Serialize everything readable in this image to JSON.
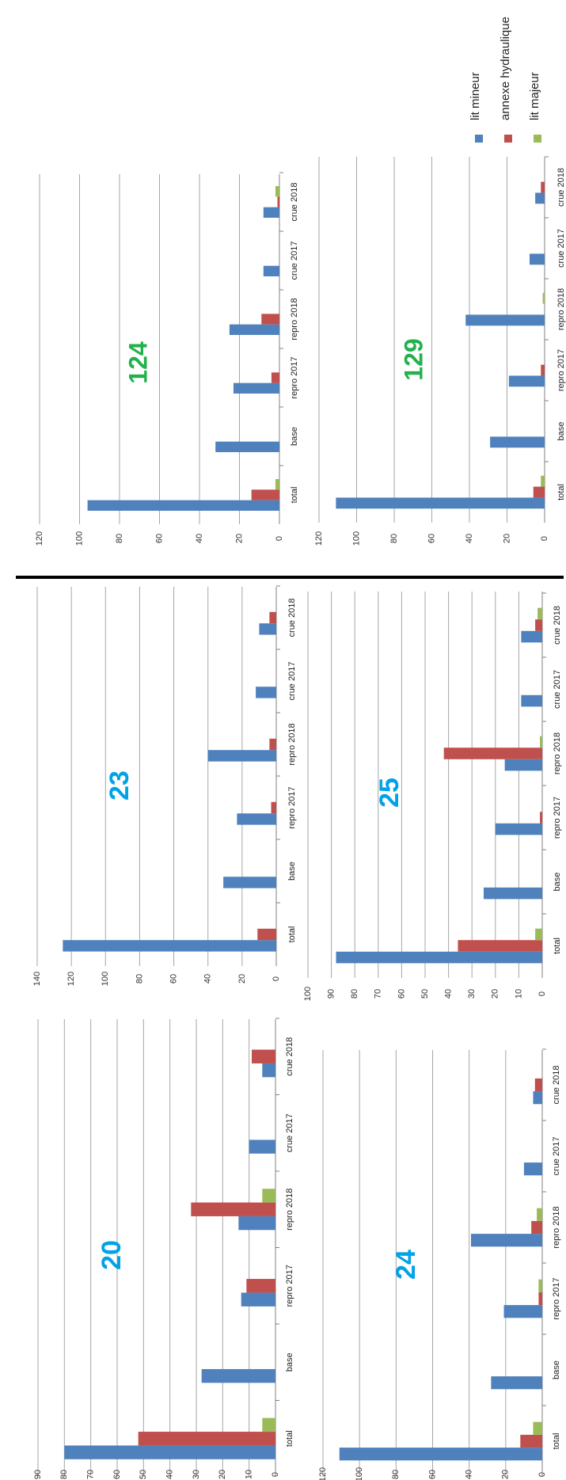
{
  "colors": {
    "lit_mineur": "#4F81BD",
    "annexe_hydraulique": "#C0504D",
    "lit_majeur": "#9BBB59",
    "gridline": "#A6A6A6",
    "axis": "#808080",
    "blue_number": "#00A2E8",
    "green_number": "#22B14C",
    "separator": "#000000"
  },
  "legend": {
    "items": [
      {
        "label": "lit mineur",
        "color": "#4F81BD"
      },
      {
        "label": "annexe hydraulique",
        "color": "#C0504D"
      },
      {
        "label": "lit majeur",
        "color": "#9BBB59"
      }
    ]
  },
  "chart_data": [
    {
      "type": "bar",
      "orientation": "rotated-90",
      "number_label": "20",
      "number_color": "#00A2E8",
      "categories": [
        "total",
        "base",
        "repro 2017",
        "repro 2018",
        "crue 2017",
        "crue 2018"
      ],
      "ylim": [
        0,
        90
      ],
      "yticks": [
        0,
        10,
        20,
        30,
        40,
        50,
        60,
        70,
        80,
        90
      ],
      "series": [
        {
          "values": [
            80,
            28,
            13,
            14,
            10,
            5
          ]
        },
        {
          "values": [
            52,
            0,
            11,
            32,
            0,
            9
          ]
        },
        {
          "values": [
            5,
            0,
            0,
            5,
            0,
            0
          ]
        }
      ]
    },
    {
      "type": "bar",
      "orientation": "rotated-90",
      "number_label": "24",
      "number_color": "#00A2E8",
      "categories": [
        "total",
        "base",
        "repro 2017",
        "repro 2018",
        "crue 2017",
        "crue 2018"
      ],
      "ylim": [
        0,
        120
      ],
      "yticks": [
        0,
        20,
        40,
        60,
        80,
        100,
        120
      ],
      "series": [
        {
          "values": [
            111,
            28,
            21,
            39,
            10,
            5
          ]
        },
        {
          "values": [
            12,
            0,
            2,
            6,
            0,
            4
          ]
        },
        {
          "values": [
            5,
            0,
            2,
            3,
            0,
            0
          ]
        }
      ]
    },
    {
      "type": "bar",
      "orientation": "rotated-90",
      "number_label": "23",
      "number_color": "#00A2E8",
      "categories": [
        "total",
        "base",
        "repro 2017",
        "repro 2018",
        "crue 2017",
        "crue 2018"
      ],
      "ylim": [
        0,
        140
      ],
      "yticks": [
        0,
        20,
        40,
        60,
        80,
        100,
        120,
        140
      ],
      "series": [
        {
          "values": [
            125,
            31,
            23,
            40,
            12,
            10
          ]
        },
        {
          "values": [
            11,
            0,
            3,
            4,
            0,
            4
          ]
        },
        {
          "values": [
            0,
            0,
            0,
            0,
            0,
            0
          ]
        }
      ]
    },
    {
      "type": "bar",
      "orientation": "rotated-90",
      "number_label": "25",
      "number_color": "#00A2E8",
      "categories": [
        "total",
        "base",
        "repro 2017",
        "repro 2018",
        "crue 2017",
        "crue 2018"
      ],
      "ylim": [
        0,
        100
      ],
      "yticks": [
        0,
        10,
        20,
        30,
        40,
        50,
        60,
        70,
        80,
        90,
        100
      ],
      "series": [
        {
          "values": [
            88,
            25,
            20,
            16,
            9,
            9
          ]
        },
        {
          "values": [
            36,
            0,
            1,
            42,
            0,
            3
          ]
        },
        {
          "values": [
            3,
            0,
            0,
            1,
            0,
            2
          ]
        }
      ]
    },
    {
      "type": "bar",
      "orientation": "rotated-90",
      "number_label": "124",
      "number_color": "#22B14C",
      "categories": [
        "total",
        "base",
        "repro 2017",
        "repro 2018",
        "crue 2017",
        "crue 2018"
      ],
      "ylim": [
        0,
        120
      ],
      "yticks": [
        0,
        20,
        40,
        60,
        80,
        100,
        120
      ],
      "series": [
        {
          "values": [
            96,
            32,
            23,
            25,
            8,
            8
          ]
        },
        {
          "values": [
            14,
            0,
            4,
            9,
            0,
            1
          ]
        },
        {
          "values": [
            2,
            0,
            0,
            0,
            0,
            2
          ]
        }
      ]
    },
    {
      "type": "bar",
      "orientation": "rotated-90",
      "number_label": "129",
      "number_color": "#22B14C",
      "categories": [
        "total",
        "base",
        "repro 2017",
        "repro 2018",
        "crue 2017",
        "crue 2018"
      ],
      "ylim": [
        0,
        120
      ],
      "yticks": [
        0,
        20,
        40,
        60,
        80,
        100,
        120
      ],
      "series": [
        {
          "values": [
            111,
            29,
            19,
            42,
            8,
            5
          ]
        },
        {
          "values": [
            6,
            0,
            2,
            0,
            0,
            2
          ]
        },
        {
          "values": [
            2,
            0,
            0,
            1,
            0,
            0
          ]
        }
      ]
    }
  ]
}
